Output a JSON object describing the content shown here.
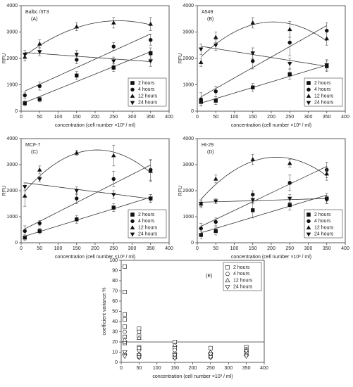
{
  "chart_data": [
    {
      "type": "scatter",
      "title": "Balbc /3T3",
      "label": "(A)",
      "x_label": "concentration (cell number ×10³ / ml)",
      "y_label": "RFU",
      "x": [
        10,
        50,
        150,
        250,
        350
      ],
      "xlim": [
        0,
        400
      ],
      "xticks": [
        0,
        50,
        100,
        150,
        200,
        250,
        300,
        350,
        400
      ],
      "ylim": [
        0,
        4000
      ],
      "yticks": [
        0,
        1000,
        2000,
        3000,
        4000
      ],
      "legend": "lower right",
      "marker_fill": "filled",
      "series": [
        {
          "name": "2 hours",
          "marker": "square",
          "fit": "linear",
          "values": [
            300,
            450,
            1350,
            1650,
            2200
          ],
          "errors": [
            100,
            100,
            150,
            150,
            200
          ]
        },
        {
          "name": "4 hours",
          "marker": "circle",
          "fit": "linear",
          "values": [
            600,
            950,
            1950,
            2450,
            2700
          ],
          "errors": [
            120,
            150,
            150,
            150,
            200
          ]
        },
        {
          "name": "12 hours",
          "marker": "triangle-up",
          "fit": "quadratic",
          "values": [
            2050,
            2550,
            3200,
            3350,
            3300
          ],
          "errors": [
            150,
            150,
            150,
            200,
            250
          ]
        },
        {
          "name": "24 hours",
          "marker": "triangle-down",
          "fit": "linear",
          "values": [
            2150,
            2250,
            2150,
            1900,
            1900
          ],
          "errors": [
            150,
            150,
            150,
            150,
            200
          ]
        }
      ]
    },
    {
      "type": "scatter",
      "title": "A549",
      "label": "(B)",
      "x_label": "concentration (cell number ×10³ / ml)",
      "y_label": "RFU",
      "x": [
        10,
        50,
        150,
        250,
        350
      ],
      "xlim": [
        0,
        400
      ],
      "xticks": [
        0,
        50,
        100,
        150,
        200,
        250,
        300,
        350,
        400
      ],
      "ylim": [
        0,
        4000
      ],
      "yticks": [
        0,
        1000,
        2000,
        3000,
        4000
      ],
      "legend": "lower right",
      "marker_fill": "filled",
      "series": [
        {
          "name": "2 hours",
          "marker": "square",
          "fit": "linear",
          "values": [
            350,
            400,
            900,
            1400,
            1700
          ],
          "errors": [
            150,
            150,
            150,
            200,
            200
          ]
        },
        {
          "name": "4 hours",
          "marker": "circle",
          "fit": "linear",
          "values": [
            450,
            750,
            1900,
            2600,
            3050
          ],
          "errors": [
            250,
            200,
            300,
            500,
            300
          ]
        },
        {
          "name": "12 hours",
          "marker": "triangle-up",
          "fit": "quadratic",
          "values": [
            1850,
            2800,
            3350,
            3100,
            2750
          ],
          "errors": [
            150,
            200,
            200,
            300,
            250
          ]
        },
        {
          "name": "24 hours",
          "marker": "triangle-down",
          "fit": "linear",
          "values": [
            2350,
            2500,
            2200,
            1800,
            1750
          ],
          "errors": [
            200,
            200,
            200,
            200,
            200
          ]
        }
      ]
    },
    {
      "type": "scatter",
      "title": "MCF-7",
      "label": "(C)",
      "x_label": "concentration (cell number ×10³ / ml)",
      "y_label": "RFU",
      "x": [
        10,
        50,
        150,
        250,
        350
      ],
      "xlim": [
        0,
        400
      ],
      "xticks": [
        0,
        50,
        100,
        150,
        200,
        250,
        300,
        350,
        400
      ],
      "ylim": [
        0,
        4000
      ],
      "yticks": [
        0,
        1000,
        2000,
        3000,
        4000
      ],
      "legend": "lower right",
      "marker_fill": "filled",
      "series": [
        {
          "name": "2 hours",
          "marker": "square",
          "fit": "linear",
          "values": [
            200,
            450,
            900,
            1350,
            1700
          ],
          "errors": [
            100,
            100,
            150,
            150,
            150
          ]
        },
        {
          "name": "4 hours",
          "marker": "circle",
          "fit": "linear",
          "values": [
            450,
            750,
            1700,
            2450,
            2800
          ],
          "errors": [
            200,
            100,
            200,
            300,
            400
          ]
        },
        {
          "name": "12 hours",
          "marker": "triangle-up",
          "fit": "quadratic",
          "values": [
            1800,
            2800,
            3450,
            3350,
            2750
          ],
          "errors": [
            400,
            150,
            100,
            400,
            400
          ]
        },
        {
          "name": "24 hours",
          "marker": "triangle-down",
          "fit": "linear",
          "values": [
            2150,
            2450,
            2000,
            1850,
            1700
          ],
          "errors": [
            150,
            100,
            150,
            150,
            150
          ]
        }
      ]
    },
    {
      "type": "scatter",
      "title": "Ht-29",
      "label": "(D)",
      "x_label": "concentration (cell number ×10³ / ml)",
      "y_label": "RFU",
      "x": [
        10,
        50,
        150,
        250,
        350
      ],
      "xlim": [
        0,
        400
      ],
      "xticks": [
        0,
        50,
        100,
        150,
        200,
        250,
        300,
        350,
        400
      ],
      "ylim": [
        0,
        4000
      ],
      "yticks": [
        0,
        1000,
        2000,
        3000,
        4000
      ],
      "legend": "lower right",
      "marker_fill": "filled",
      "series": [
        {
          "name": "2 hours",
          "marker": "square",
          "fit": "linear",
          "values": [
            300,
            450,
            1250,
            1450,
            1700
          ],
          "errors": [
            150,
            150,
            300,
            200,
            200
          ]
        },
        {
          "name": "4 hours",
          "marker": "circle",
          "fit": "linear",
          "values": [
            550,
            800,
            1850,
            2300,
            2800
          ],
          "errors": [
            200,
            150,
            150,
            300,
            300
          ]
        },
        {
          "name": "12 hours",
          "marker": "triangle-up",
          "fit": "quadratic",
          "values": [
            1500,
            2450,
            3200,
            3050,
            2650
          ],
          "errors": [
            150,
            150,
            200,
            150,
            250
          ]
        },
        {
          "name": "24 hours",
          "marker": "triangle-down",
          "fit": "linear",
          "values": [
            1500,
            1600,
            1650,
            1700,
            1650
          ],
          "errors": [
            100,
            100,
            150,
            150,
            150
          ]
        }
      ]
    },
    {
      "type": "scatter",
      "label": "(E)",
      "x_label": "concentration (cell number ×10³ / ml)",
      "y_label": "coefficient variance %",
      "xlim": [
        0,
        400
      ],
      "xticks": [
        0,
        50,
        100,
        150,
        200,
        250,
        300,
        350,
        400
      ],
      "ylim": [
        0,
        100
      ],
      "yticks": [
        0,
        10,
        20,
        30,
        40,
        50,
        60,
        70,
        80,
        90,
        100
      ],
      "legend": "upper right",
      "marker_fill": "open",
      "hline": 20,
      "series": [
        {
          "name": "2 hours",
          "marker": "square",
          "x": [
            10,
            10,
            10,
            10,
            10,
            10,
            10,
            50,
            50,
            50,
            50,
            150,
            150,
            150,
            250,
            250,
            350,
            350
          ],
          "values": [
            94,
            69,
            47,
            42,
            35,
            25,
            19,
            33,
            26,
            15,
            7,
            20,
            15,
            8,
            14,
            8,
            15,
            10
          ]
        },
        {
          "name": "4 hours",
          "marker": "circle",
          "x": [
            10,
            10,
            10,
            50,
            50,
            50,
            150,
            150,
            250,
            250,
            350,
            350
          ],
          "values": [
            30,
            20,
            8,
            30,
            14,
            5,
            12,
            6,
            9,
            5,
            13,
            7
          ]
        },
        {
          "name": "12 hours",
          "marker": "triangle-up",
          "x": [
            10,
            10,
            50,
            50,
            150,
            150,
            250,
            250,
            350,
            350
          ],
          "values": [
            22,
            9,
            24,
            8,
            17,
            5,
            10,
            6,
            12,
            8
          ]
        },
        {
          "name": "24 hours",
          "marker": "triangle-down",
          "x": [
            10,
            10,
            50,
            50,
            150,
            150,
            250,
            250,
            350,
            350
          ],
          "values": [
            10,
            6,
            11,
            5,
            7,
            4,
            8,
            5,
            11,
            6
          ]
        }
      ]
    }
  ]
}
